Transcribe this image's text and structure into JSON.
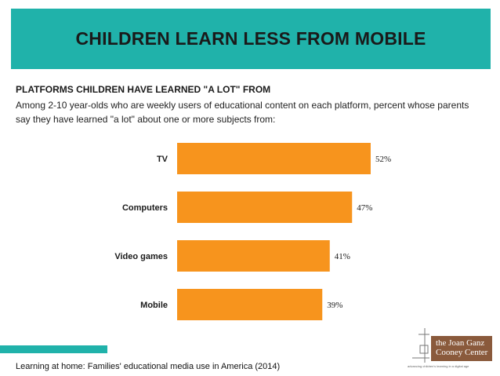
{
  "header": {
    "title": "CHILDREN LEARN LESS FROM MOBILE"
  },
  "intro": {
    "subtitle": "PLATFORMS CHILDREN HAVE LEARNED \"A LOT\" FROM",
    "description": "Among 2-10 year-olds who are weekly users of educational content on each platform, percent whose parents say they have learned \"a lot\" about one or more subjects from:"
  },
  "chart_data": {
    "type": "bar",
    "orientation": "horizontal",
    "categories": [
      "TV",
      "Computers",
      "Video games",
      "Mobile"
    ],
    "values": [
      52,
      47,
      41,
      39
    ],
    "value_labels": [
      "52%",
      "47%",
      "41%",
      "39%"
    ],
    "bar_color": "#F7941D",
    "grid": false
  },
  "footer": {
    "source": "Learning at home: Families' educational media use in America (2014)"
  },
  "logo": {
    "line1": "the Joan Ganz",
    "line2": "Cooney Center",
    "tagline": "advancing children's learning in a digital age",
    "color": "#8a5a3c"
  },
  "colors": {
    "accent": "#20B2AA",
    "bar": "#F7941D"
  }
}
